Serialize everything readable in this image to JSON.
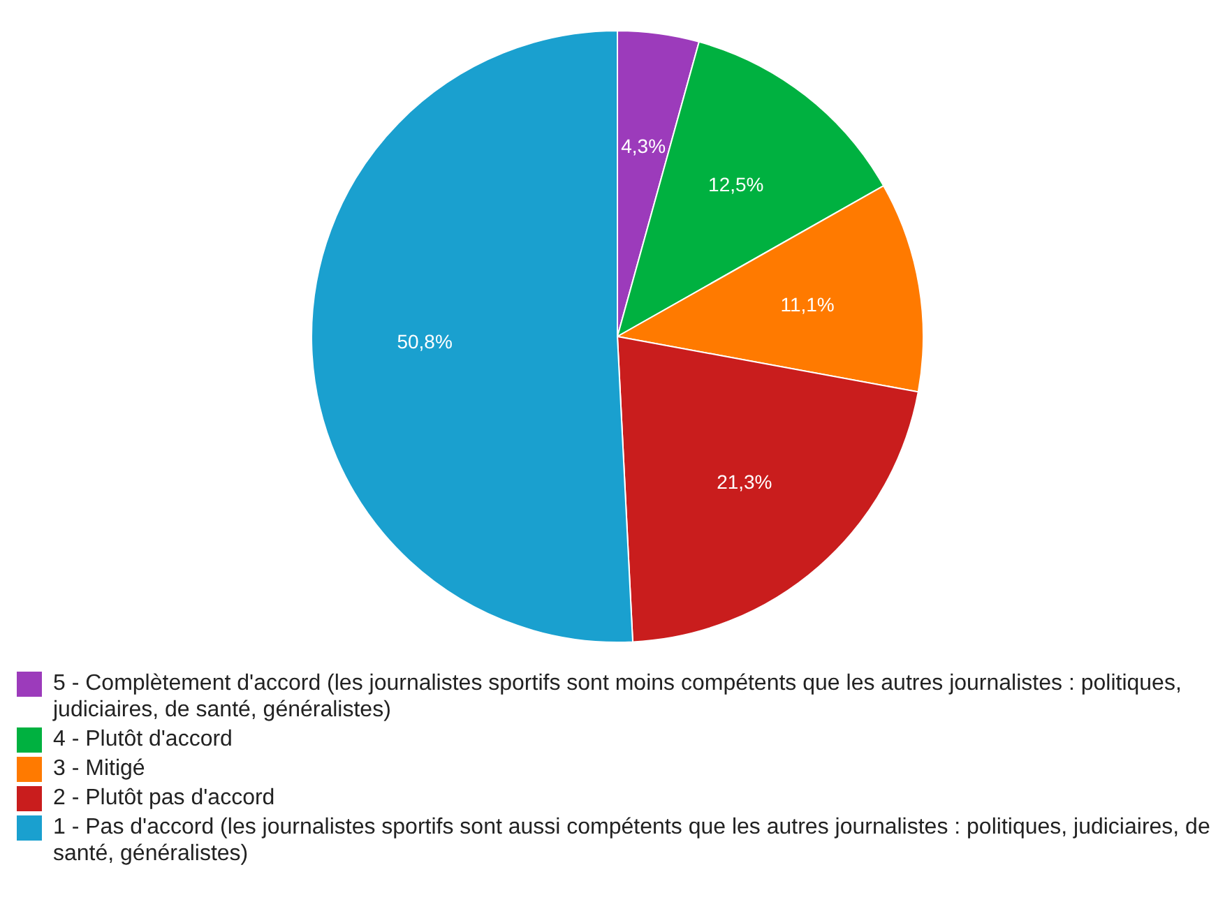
{
  "chart_data": {
    "type": "pie",
    "categories": [
      "5 - Complètement d'accord (les journalistes sportifs sont moins compétents que les autres journalistes : politiques, judiciaires, de santé, généralistes)",
      "4 - Plutôt d'accord",
      "3 - Mitigé",
      "2 - Plutôt pas d'accord",
      "1 - Pas d'accord (les journalistes sportifs sont aussi compétents que les autres journalistes : politiques, judiciaires, de santé, généralistes)"
    ],
    "values": [
      4.3,
      12.5,
      11.1,
      21.3,
      50.8
    ],
    "colors": [
      "#9c3bbb",
      "#00b140",
      "#ff7a00",
      "#c91d1d",
      "#1aa0cf"
    ],
    "value_labels": [
      "4,3%",
      "12,5%",
      "11,1%",
      "21,3%",
      "50,8%"
    ],
    "legend": "bottom"
  }
}
